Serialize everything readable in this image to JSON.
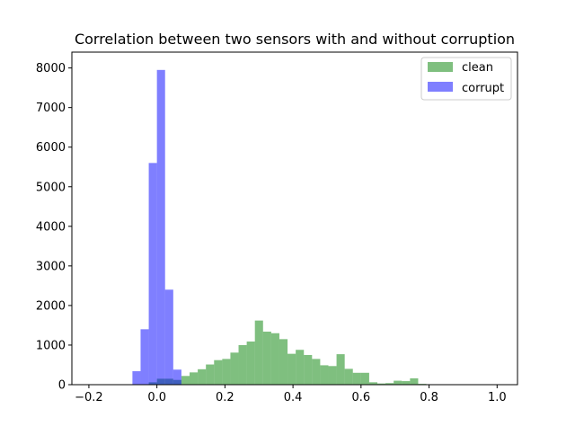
{
  "chart_data": {
    "type": "histogram",
    "title": "Correlation between two sensors with and without corruption",
    "xlabel": "",
    "ylabel": "",
    "xlim": [
      -0.25,
      1.06
    ],
    "ylim": [
      0,
      8400
    ],
    "xticks": [
      -0.2,
      0.0,
      0.2,
      0.4,
      0.6,
      0.8,
      1.0
    ],
    "xtick_labels": [
      "−0.2",
      "0.0",
      "0.2",
      "0.4",
      "0.6",
      "0.8",
      "1.0"
    ],
    "yticks": [
      0,
      1000,
      2000,
      3000,
      4000,
      5000,
      6000,
      7000,
      8000
    ],
    "ytick_labels": [
      "0",
      "1000",
      "2000",
      "3000",
      "4000",
      "5000",
      "6000",
      "7000",
      "8000"
    ],
    "grid": false,
    "legend_position": "top-right",
    "bin_width": 0.024,
    "series": [
      {
        "name": "clean",
        "color": "#008000",
        "opacity": 0.5,
        "bin_start": -0.024,
        "counts": [
          60,
          150,
          150,
          120,
          220,
          310,
          390,
          510,
          620,
          650,
          810,
          1000,
          1090,
          1620,
          1340,
          1300,
          1150,
          780,
          880,
          750,
          650,
          490,
          470,
          770,
          400,
          300,
          300,
          60,
          30,
          40,
          100,
          90,
          160,
          20
        ]
      },
      {
        "name": "corrupt",
        "color": "#0000ff",
        "opacity": 0.5,
        "bin_start": -0.096,
        "counts": [
          0,
          340,
          1400,
          5600,
          7950,
          2400,
          380
        ]
      }
    ]
  }
}
